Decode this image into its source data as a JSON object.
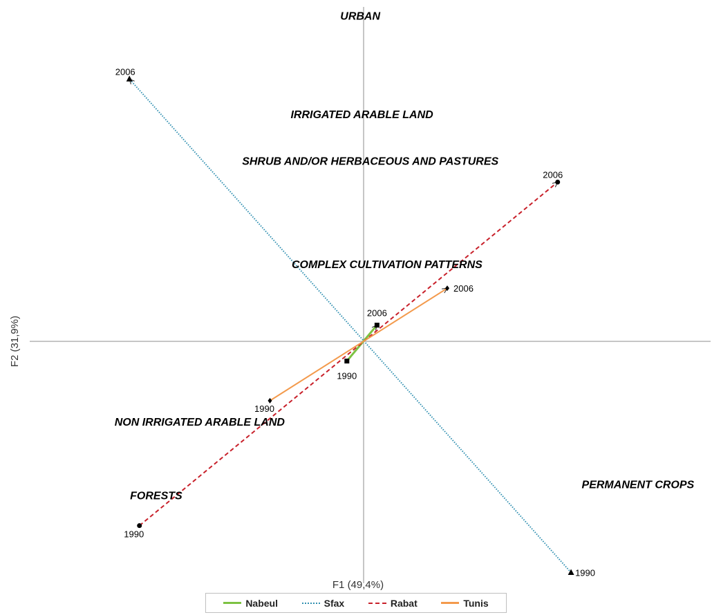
{
  "chart_data": {
    "type": "scatter",
    "xlabel": "F1 (49,4%)",
    "ylabel": "F2 (31,9%)",
    "xlim": [
      -1.0,
      1.0
    ],
    "ylim": [
      -0.95,
      1.0
    ],
    "series": [
      {
        "name": "Nabeul",
        "color": "#7dc242",
        "dash": "solid",
        "marker": "square",
        "points": [
          {
            "x": -0.05,
            "y": -0.063,
            "label": "1990"
          },
          {
            "x": 0.04,
            "y": 0.052,
            "label": "2006"
          }
        ]
      },
      {
        "name": "Sfax",
        "color": "#2f8fb0",
        "dash": "dotted",
        "marker": "triangle",
        "points": [
          {
            "x": 0.62,
            "y": -0.74,
            "label": "1990"
          },
          {
            "x": -0.7,
            "y": 0.84,
            "label": "2006"
          }
        ]
      },
      {
        "name": "Rabat",
        "color": "#c8202a",
        "dash": "dashed",
        "marker": "circle",
        "points": [
          {
            "x": -0.67,
            "y": -0.59,
            "label": "1990"
          },
          {
            "x": 0.58,
            "y": 0.51,
            "label": "2006"
          }
        ]
      },
      {
        "name": "Tunis",
        "color": "#f39a4c",
        "dash": "solid",
        "marker": "diamond",
        "points": [
          {
            "x": -0.28,
            "y": -0.19,
            "label": "1990"
          },
          {
            "x": 0.25,
            "y": 0.17,
            "label": "2006"
          }
        ]
      }
    ],
    "annotations": [
      {
        "text": "URBAN",
        "x": -0.01,
        "y": 1.03
      },
      {
        "text": "IRRIGATED ARABLE LAND",
        "x": -0.005,
        "y": 0.715
      },
      {
        "text": "SHRUB AND/OR HERBACEOUS AND PASTURES",
        "x": 0.02,
        "y": 0.565
      },
      {
        "text": "COMPLEX CULTIVATION PATTERNS",
        "x": 0.07,
        "y": 0.235
      },
      {
        "text": "NON IRRIGATED ARABLE LAND",
        "x": -0.49,
        "y": -0.27
      },
      {
        "text": "FORESTS",
        "x": -0.62,
        "y": -0.505
      },
      {
        "text": "PERMANENT CROPS",
        "x": 0.82,
        "y": -0.47
      }
    ],
    "legend_position": "bottom-center",
    "grid": false
  }
}
